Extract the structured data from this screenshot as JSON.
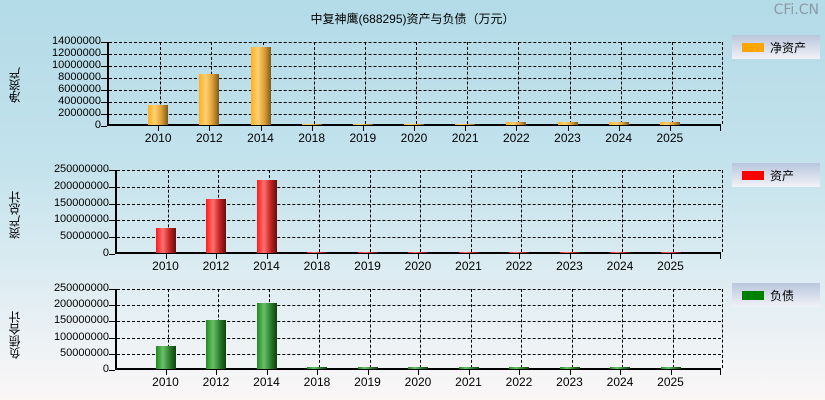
{
  "title": "中复神鹰(688295)资产与负债（万元）",
  "watermark": "CFi.CN",
  "chart_data": [
    {
      "type": "bar",
      "title": "中复神鹰(688295)资产与负债（万元）",
      "ylabel": "净资产",
      "legend": "净资产",
      "color": "#FFA500",
      "categories": [
        "2010",
        "2012",
        "2014",
        "2018",
        "2019",
        "2020",
        "2021",
        "2022",
        "2023",
        "2024",
        "2025"
      ],
      "values": [
        3300000,
        8500000,
        13000000,
        150000,
        150000,
        150000,
        150000,
        500000,
        500000,
        500000,
        500000
      ],
      "yticks": [
        "14000000",
        "12000000",
        "10000000",
        "8000000",
        "6000000",
        "4000000",
        "2000000",
        "0"
      ],
      "ylim": [
        0,
        14000000
      ],
      "grid": true
    },
    {
      "type": "bar",
      "ylabel": "资产总计",
      "legend": "资产",
      "color": "#FF0000",
      "categories": [
        "2010",
        "2012",
        "2014",
        "2018",
        "2019",
        "2020",
        "2021",
        "2022",
        "2023",
        "2024",
        "2025"
      ],
      "values": [
        75000000,
        162000000,
        218000000,
        3000000,
        3000000,
        3000000,
        3000000,
        3000000,
        3000000,
        3000000,
        3000000
      ],
      "yticks": [
        "250000000",
        "200000000",
        "150000000",
        "100000000",
        "50000000",
        "0"
      ],
      "ylim": [
        0,
        250000000
      ],
      "grid": true
    },
    {
      "type": "bar",
      "ylabel": "负债合计",
      "legend": "负债",
      "color": "#008000",
      "categories": [
        "2010",
        "2012",
        "2014",
        "2018",
        "2019",
        "2020",
        "2021",
        "2022",
        "2023",
        "2024",
        "2025"
      ],
      "values": [
        72000000,
        152000000,
        205000000,
        5000000,
        5000000,
        5000000,
        5000000,
        5000000,
        5000000,
        5000000,
        5000000
      ],
      "yticks": [
        "250000000",
        "200000000",
        "150000000",
        "100000000",
        "50000000",
        "0"
      ],
      "ylim": [
        0,
        250000000
      ],
      "grid": true
    }
  ]
}
